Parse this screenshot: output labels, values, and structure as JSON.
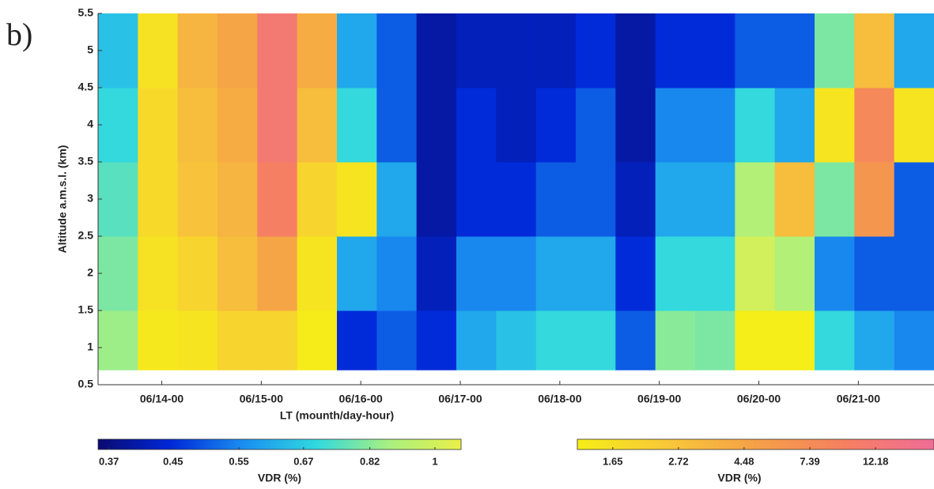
{
  "chart_data": {
    "type": "heatmap",
    "panel_label": "b)",
    "y_label": "Altitude a.m.s.l. (km)",
    "x_label": "LT (mounth/day-hour)",
    "xlim": [
      13.36,
      21.76
    ],
    "xticks": [
      {
        "value": 14,
        "label": "06/14-00"
      },
      {
        "value": 15,
        "label": "06/15-00"
      },
      {
        "value": 16,
        "label": "06/16-00"
      },
      {
        "value": 17,
        "label": "06/17-00"
      },
      {
        "value": 18,
        "label": "06/18-00"
      },
      {
        "value": 19,
        "label": "06/19-00"
      },
      {
        "value": 20,
        "label": "06/20-00"
      },
      {
        "value": 21,
        "label": "06/21-00"
      }
    ],
    "ylim": [
      0.5,
      5.5
    ],
    "yticks": [
      0.5,
      1,
      1.5,
      2,
      2.5,
      3,
      3.5,
      4,
      4.5,
      5,
      5.5
    ],
    "x_edges": [
      13.36,
      13.76,
      14.16,
      14.56,
      14.96,
      15.36,
      15.76,
      16.16,
      16.56,
      16.96,
      17.36,
      17.76,
      18.16,
      18.56,
      18.96,
      19.36,
      19.76,
      20.16,
      20.56,
      20.96,
      21.36,
      21.76
    ],
    "y_edges": [
      0.7,
      1.5,
      2.5,
      3.5,
      4.5,
      5.5
    ],
    "z": [
      [
        0.85,
        1.4,
        1.5,
        2,
        2,
        1.3,
        0.45,
        0.5,
        0.45,
        0.6,
        0.65,
        0.7,
        0.7,
        0.5,
        0.82,
        0.8,
        1.2,
        1.1,
        0.7,
        0.6,
        0.55
      ],
      [
        0.8,
        1.6,
        2,
        3,
        4.5,
        1.5,
        0.6,
        0.55,
        0.42,
        0.55,
        0.55,
        0.6,
        0.6,
        0.45,
        0.7,
        0.7,
        1,
        0.9,
        0.55,
        0.5,
        0.5
      ],
      [
        0.75,
        1.8,
        2.7,
        3.5,
        10,
        2,
        1.5,
        0.6,
        0.4,
        0.45,
        0.45,
        0.5,
        0.5,
        0.42,
        0.6,
        0.6,
        0.9,
        3,
        0.8,
        6,
        0.5
      ],
      [
        0.7,
        1.8,
        3,
        4,
        12,
        3,
        0.7,
        0.5,
        0.4,
        0.45,
        0.42,
        0.45,
        0.5,
        0.4,
        0.55,
        0.55,
        0.7,
        0.6,
        1.5,
        8,
        1.5
      ],
      [
        0.65,
        1.6,
        3.5,
        4.5,
        12,
        4,
        0.6,
        0.5,
        0.4,
        0.42,
        0.42,
        0.42,
        0.45,
        0.4,
        0.45,
        0.45,
        0.5,
        0.5,
        0.8,
        3,
        0.6
      ]
    ],
    "log_scale": true,
    "colorbars": [
      {
        "label": "VDR (%)",
        "clim": [
          0.358,
          1.083
        ],
        "ticks": [
          0.37,
          0.45,
          0.55,
          0.67,
          0.82,
          1
        ],
        "colors": [
          "#0a0a70",
          "#0028d8",
          "#1a8ef0",
          "#30d8e0",
          "#a8f080",
          "#eaf048"
        ]
      },
      {
        "label": "VDR (%)",
        "clim": [
          1.26,
          19
        ],
        "ticks": [
          1.65,
          2.72,
          4.48,
          7.39,
          12.18
        ],
        "colors": [
          "#f5ee18",
          "#f8c838",
          "#f5a048",
          "#f58060",
          "#f06c98"
        ]
      }
    ]
  }
}
